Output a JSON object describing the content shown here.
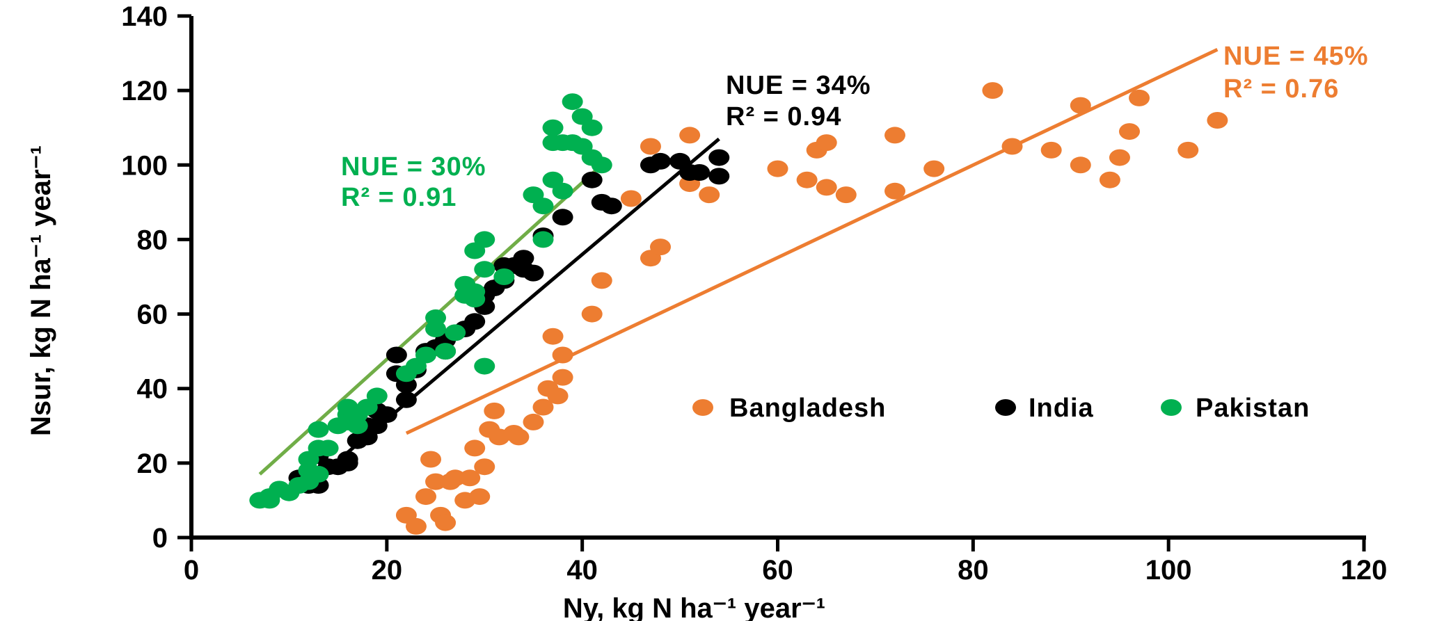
{
  "chart_data": {
    "type": "scatter",
    "title": "",
    "xlabel": "Ny, kg N ha⁻¹ year⁻¹",
    "ylabel": "Nsur, kg N ha⁻¹ year⁻¹",
    "xlim": [
      0,
      120
    ],
    "ylim": [
      0,
      140
    ],
    "xticks": [
      0,
      20,
      40,
      60,
      80,
      100,
      120
    ],
    "yticks": [
      0,
      20,
      40,
      60,
      80,
      100,
      120,
      140
    ],
    "grid": false,
    "legend_position": "center-right",
    "series": [
      {
        "name": "Bangladesh",
        "color": "#ED7D31",
        "points": [
          [
            22,
            6
          ],
          [
            23,
            3
          ],
          [
            24,
            11
          ],
          [
            24.5,
            21
          ],
          [
            25,
            15
          ],
          [
            25.5,
            6
          ],
          [
            26,
            4
          ],
          [
            26.5,
            15
          ],
          [
            27,
            16
          ],
          [
            28,
            10
          ],
          [
            28.5,
            16
          ],
          [
            29,
            24
          ],
          [
            29.5,
            11
          ],
          [
            30,
            19
          ],
          [
            30.5,
            29
          ],
          [
            31,
            34
          ],
          [
            31.5,
            27
          ],
          [
            33,
            28
          ],
          [
            33.5,
            27
          ],
          [
            35,
            31
          ],
          [
            36,
            35
          ],
          [
            36.5,
            40
          ],
          [
            37,
            54
          ],
          [
            37.5,
            38
          ],
          [
            38,
            43
          ],
          [
            38,
            49
          ],
          [
            41,
            60
          ],
          [
            42,
            69
          ],
          [
            45,
            91
          ],
          [
            47,
            75
          ],
          [
            47,
            105
          ],
          [
            48,
            78
          ],
          [
            51,
            95
          ],
          [
            51,
            108
          ],
          [
            53,
            92
          ],
          [
            60,
            99
          ],
          [
            63,
            96
          ],
          [
            64,
            104
          ],
          [
            65,
            106
          ],
          [
            65,
            94
          ],
          [
            67,
            92
          ],
          [
            72,
            108
          ],
          [
            72,
            93
          ],
          [
            76,
            99
          ],
          [
            82,
            120
          ],
          [
            84,
            105
          ],
          [
            88,
            104
          ],
          [
            91,
            100
          ],
          [
            91,
            116
          ],
          [
            94,
            96
          ],
          [
            95,
            102
          ],
          [
            96,
            109
          ],
          [
            97,
            118
          ],
          [
            102,
            104
          ],
          [
            105,
            112
          ]
        ]
      },
      {
        "name": "India",
        "color": "#000000",
        "points": [
          [
            11,
            16
          ],
          [
            12,
            14
          ],
          [
            13,
            14
          ],
          [
            13,
            22
          ],
          [
            14,
            19
          ],
          [
            15,
            19
          ],
          [
            16,
            20
          ],
          [
            16,
            21
          ],
          [
            17,
            26
          ],
          [
            18,
            27
          ],
          [
            18,
            30
          ],
          [
            19,
            30
          ],
          [
            19,
            34
          ],
          [
            20,
            33
          ],
          [
            21,
            44
          ],
          [
            21,
            49
          ],
          [
            22,
            37
          ],
          [
            22,
            41
          ],
          [
            23,
            45
          ],
          [
            24,
            50
          ],
          [
            25,
            51
          ],
          [
            26,
            50
          ],
          [
            26,
            53
          ],
          [
            28,
            56
          ],
          [
            29,
            58
          ],
          [
            30,
            62
          ],
          [
            30,
            65
          ],
          [
            31,
            67
          ],
          [
            32,
            69
          ],
          [
            32,
            73
          ],
          [
            33,
            73
          ],
          [
            34,
            72
          ],
          [
            34,
            75
          ],
          [
            35,
            71
          ],
          [
            36,
            81
          ],
          [
            38,
            86
          ],
          [
            41,
            96
          ],
          [
            42,
            90
          ],
          [
            43,
            89
          ],
          [
            47,
            100
          ],
          [
            48,
            101
          ],
          [
            50,
            101
          ],
          [
            51,
            98
          ],
          [
            52,
            98
          ],
          [
            54,
            97
          ],
          [
            54,
            102
          ]
        ]
      },
      {
        "name": "Pakistan",
        "color": "#00B050",
        "points": [
          [
            7,
            10
          ],
          [
            8,
            11
          ],
          [
            8,
            10
          ],
          [
            9,
            13
          ],
          [
            10,
            12
          ],
          [
            11,
            14
          ],
          [
            12,
            15
          ],
          [
            12,
            18
          ],
          [
            12,
            21
          ],
          [
            13,
            17
          ],
          [
            13,
            24
          ],
          [
            13,
            29
          ],
          [
            14,
            24
          ],
          [
            15,
            30
          ],
          [
            16,
            31
          ],
          [
            16,
            33
          ],
          [
            16,
            35
          ],
          [
            17,
            30
          ],
          [
            17,
            33
          ],
          [
            18,
            35
          ],
          [
            19,
            38
          ],
          [
            22,
            44
          ],
          [
            23,
            46
          ],
          [
            24,
            49
          ],
          [
            25,
            56
          ],
          [
            25,
            59
          ],
          [
            26,
            50
          ],
          [
            27,
            55
          ],
          [
            28,
            65
          ],
          [
            28,
            68
          ],
          [
            29,
            64
          ],
          [
            29,
            66
          ],
          [
            29,
            77
          ],
          [
            30,
            46
          ],
          [
            30,
            72
          ],
          [
            30,
            80
          ],
          [
            32,
            70
          ],
          [
            35,
            92
          ],
          [
            36,
            89
          ],
          [
            36,
            80
          ],
          [
            37,
            96
          ],
          [
            37,
            106
          ],
          [
            37,
            110
          ],
          [
            38,
            93
          ],
          [
            38,
            106
          ],
          [
            39,
            106
          ],
          [
            39,
            117
          ],
          [
            40,
            105
          ],
          [
            40,
            113
          ],
          [
            41,
            102
          ],
          [
            41,
            110
          ],
          [
            42,
            100
          ]
        ]
      }
    ],
    "trendlines": [
      {
        "series": "Bangladesh",
        "color": "#ED7D31",
        "x": [
          22,
          105
        ],
        "y": [
          28,
          131
        ]
      },
      {
        "series": "India",
        "color": "#000000",
        "x": [
          12,
          54
        ],
        "y": [
          14,
          107
        ]
      },
      {
        "series": "Pakistan",
        "color": "#70AD47",
        "x": [
          7,
          42
        ],
        "y": [
          17,
          100
        ]
      }
    ],
    "annotations": [
      {
        "series": "Pakistan",
        "color": "#00B050",
        "nue": "NUE = 30%",
        "r2": "R² = 0.91"
      },
      {
        "series": "India",
        "color": "#000000",
        "nue": "NUE = 34%",
        "r2": "R² = 0.94"
      },
      {
        "series": "Bangladesh",
        "color": "#ED7D31",
        "nue": "NUE = 45%",
        "r2": "R² = 0.76"
      }
    ]
  }
}
